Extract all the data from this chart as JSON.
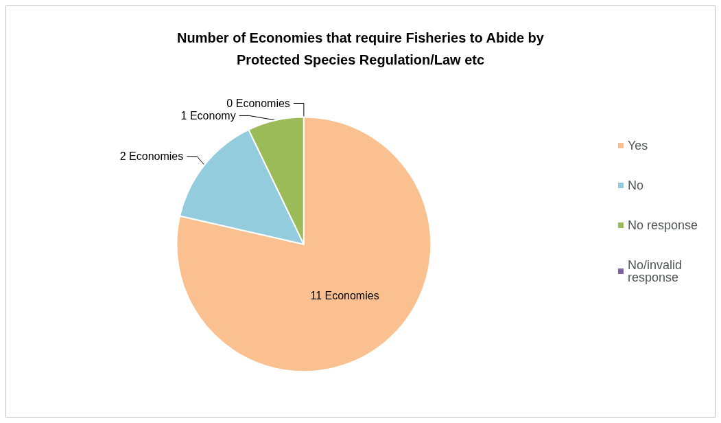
{
  "chart_data": {
    "type": "pie",
    "title": "Number of Economies that require Fisheries to Abide by\nProtected Species Regulation/Law etc",
    "categories": [
      "Yes",
      "No",
      "No response",
      "No/invalid response"
    ],
    "values": [
      11,
      2,
      1,
      0
    ],
    "value_labels": [
      "11 Economies",
      "2 Economies",
      "1 Economy",
      "0 Economies"
    ],
    "colors": [
      "#fac090",
      "#93cddd",
      "#9bbb59",
      "#8064a2"
    ],
    "legend": "right"
  }
}
